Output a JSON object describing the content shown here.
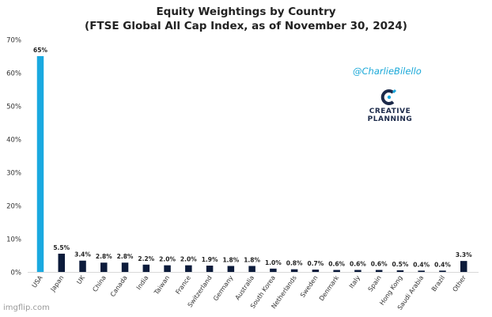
{
  "header": {
    "title": "Equity Weightings by Country",
    "subtitle": "(FTSE Global All Cap Index, as of November 30, 2024)"
  },
  "branding": {
    "handle": "@CharlieBilello",
    "logo_line1": "CREATIVE",
    "logo_line2": "PLANNING",
    "logo_mark_icon": "creative-planning-c-icon",
    "watermark": "imgflip.com"
  },
  "colors": {
    "highlight_bar": "#1aa9e0",
    "bar": "#0c1b3b",
    "axis_text": "#333333",
    "handle": "#19a8d8"
  },
  "chart_data": {
    "type": "bar",
    "title": "Equity Weightings by Country",
    "subtitle": "(FTSE Global All Cap Index, as of November 30, 2024)",
    "xlabel": "",
    "ylabel": "",
    "ylim": [
      0,
      70
    ],
    "yticks": [
      0,
      10,
      20,
      30,
      40,
      50,
      60,
      70
    ],
    "ytick_labels": [
      "0%",
      "10%",
      "20%",
      "30%",
      "40%",
      "50%",
      "60%",
      "70%"
    ],
    "grid": false,
    "categories": [
      "USA",
      "Japan",
      "UK",
      "China",
      "Canada",
      "India",
      "Taiwan",
      "France",
      "Switzerland",
      "Germany",
      "Australia",
      "South Korea",
      "Netherlands",
      "Sweden",
      "Denmark",
      "Italy",
      "Spain",
      "Hong Kong",
      "Saudi Arabia",
      "Brazil",
      "Other"
    ],
    "values": [
      65,
      5.5,
      3.4,
      2.8,
      2.8,
      2.2,
      2.0,
      2.0,
      1.9,
      1.8,
      1.8,
      1.0,
      0.8,
      0.7,
      0.6,
      0.6,
      0.6,
      0.5,
      0.4,
      0.4,
      3.3
    ],
    "data_labels": [
      "65%",
      "5.5%",
      "3.4%",
      "2.8%",
      "2.8%",
      "2.2%",
      "2.0%",
      "2.0%",
      "1.9%",
      "1.8%",
      "1.8%",
      "1.0%",
      "0.8%",
      "0.7%",
      "0.6%",
      "0.6%",
      "0.6%",
      "0.5%",
      "0.4%",
      "0.4%",
      "3.3%"
    ],
    "highlight_category": "USA"
  }
}
